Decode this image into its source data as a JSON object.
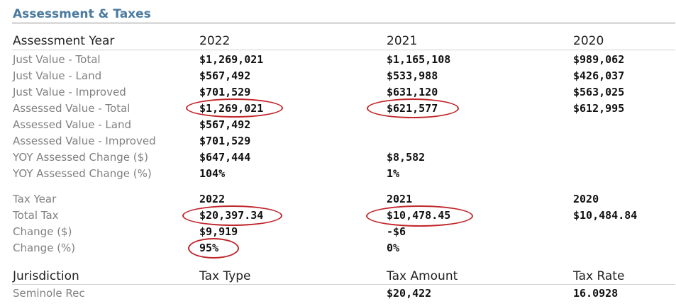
{
  "title": "Assessment & Taxes",
  "assessment": {
    "header": {
      "label": "Assessment Year",
      "years": [
        "2022",
        "2021",
        "2020"
      ]
    },
    "rows": [
      {
        "label": "Just Value - Total",
        "values": [
          "$1,269,021",
          "$1,165,108",
          "$989,062"
        ]
      },
      {
        "label": "Just Value - Land",
        "values": [
          "$567,492",
          "$533,988",
          "$426,037"
        ]
      },
      {
        "label": "Just Value - Improved",
        "values": [
          "$701,529",
          "$631,120",
          "$563,025"
        ]
      },
      {
        "label": "Assessed Value - Total",
        "values": [
          "$1,269,021",
          "$621,577",
          "$612,995"
        ]
      },
      {
        "label": "Assessed Value - Land",
        "values": [
          "$567,492",
          "",
          ""
        ]
      },
      {
        "label": "Assessed Value - Improved",
        "values": [
          "$701,529",
          "",
          ""
        ]
      },
      {
        "label": "YOY Assessed Change ($)",
        "values": [
          "$647,444",
          "$8,582",
          ""
        ]
      },
      {
        "label": "YOY Assessed Change (%)",
        "values": [
          "104%",
          "1%",
          ""
        ]
      }
    ]
  },
  "tax": {
    "header": {
      "label": "Tax Year",
      "years": [
        "2022",
        "2021",
        "2020"
      ]
    },
    "rows": [
      {
        "label": "Total Tax",
        "values": [
          "$20,397.34",
          "$10,478.45",
          "$10,484.84"
        ]
      },
      {
        "label": "Change ($)",
        "values": [
          "$9,919",
          "-$6",
          ""
        ]
      },
      {
        "label": "Change (%)",
        "values": [
          "95%",
          "0%",
          ""
        ]
      }
    ]
  },
  "jurisdiction": {
    "header": [
      "Jurisdiction",
      "Tax Type",
      "Tax Amount",
      "Tax Rate"
    ],
    "rows": [
      {
        "values": [
          "Seminole Rec",
          "",
          "$20,422",
          "16.0928"
        ]
      }
    ]
  },
  "annotation_color": "#c0262b"
}
